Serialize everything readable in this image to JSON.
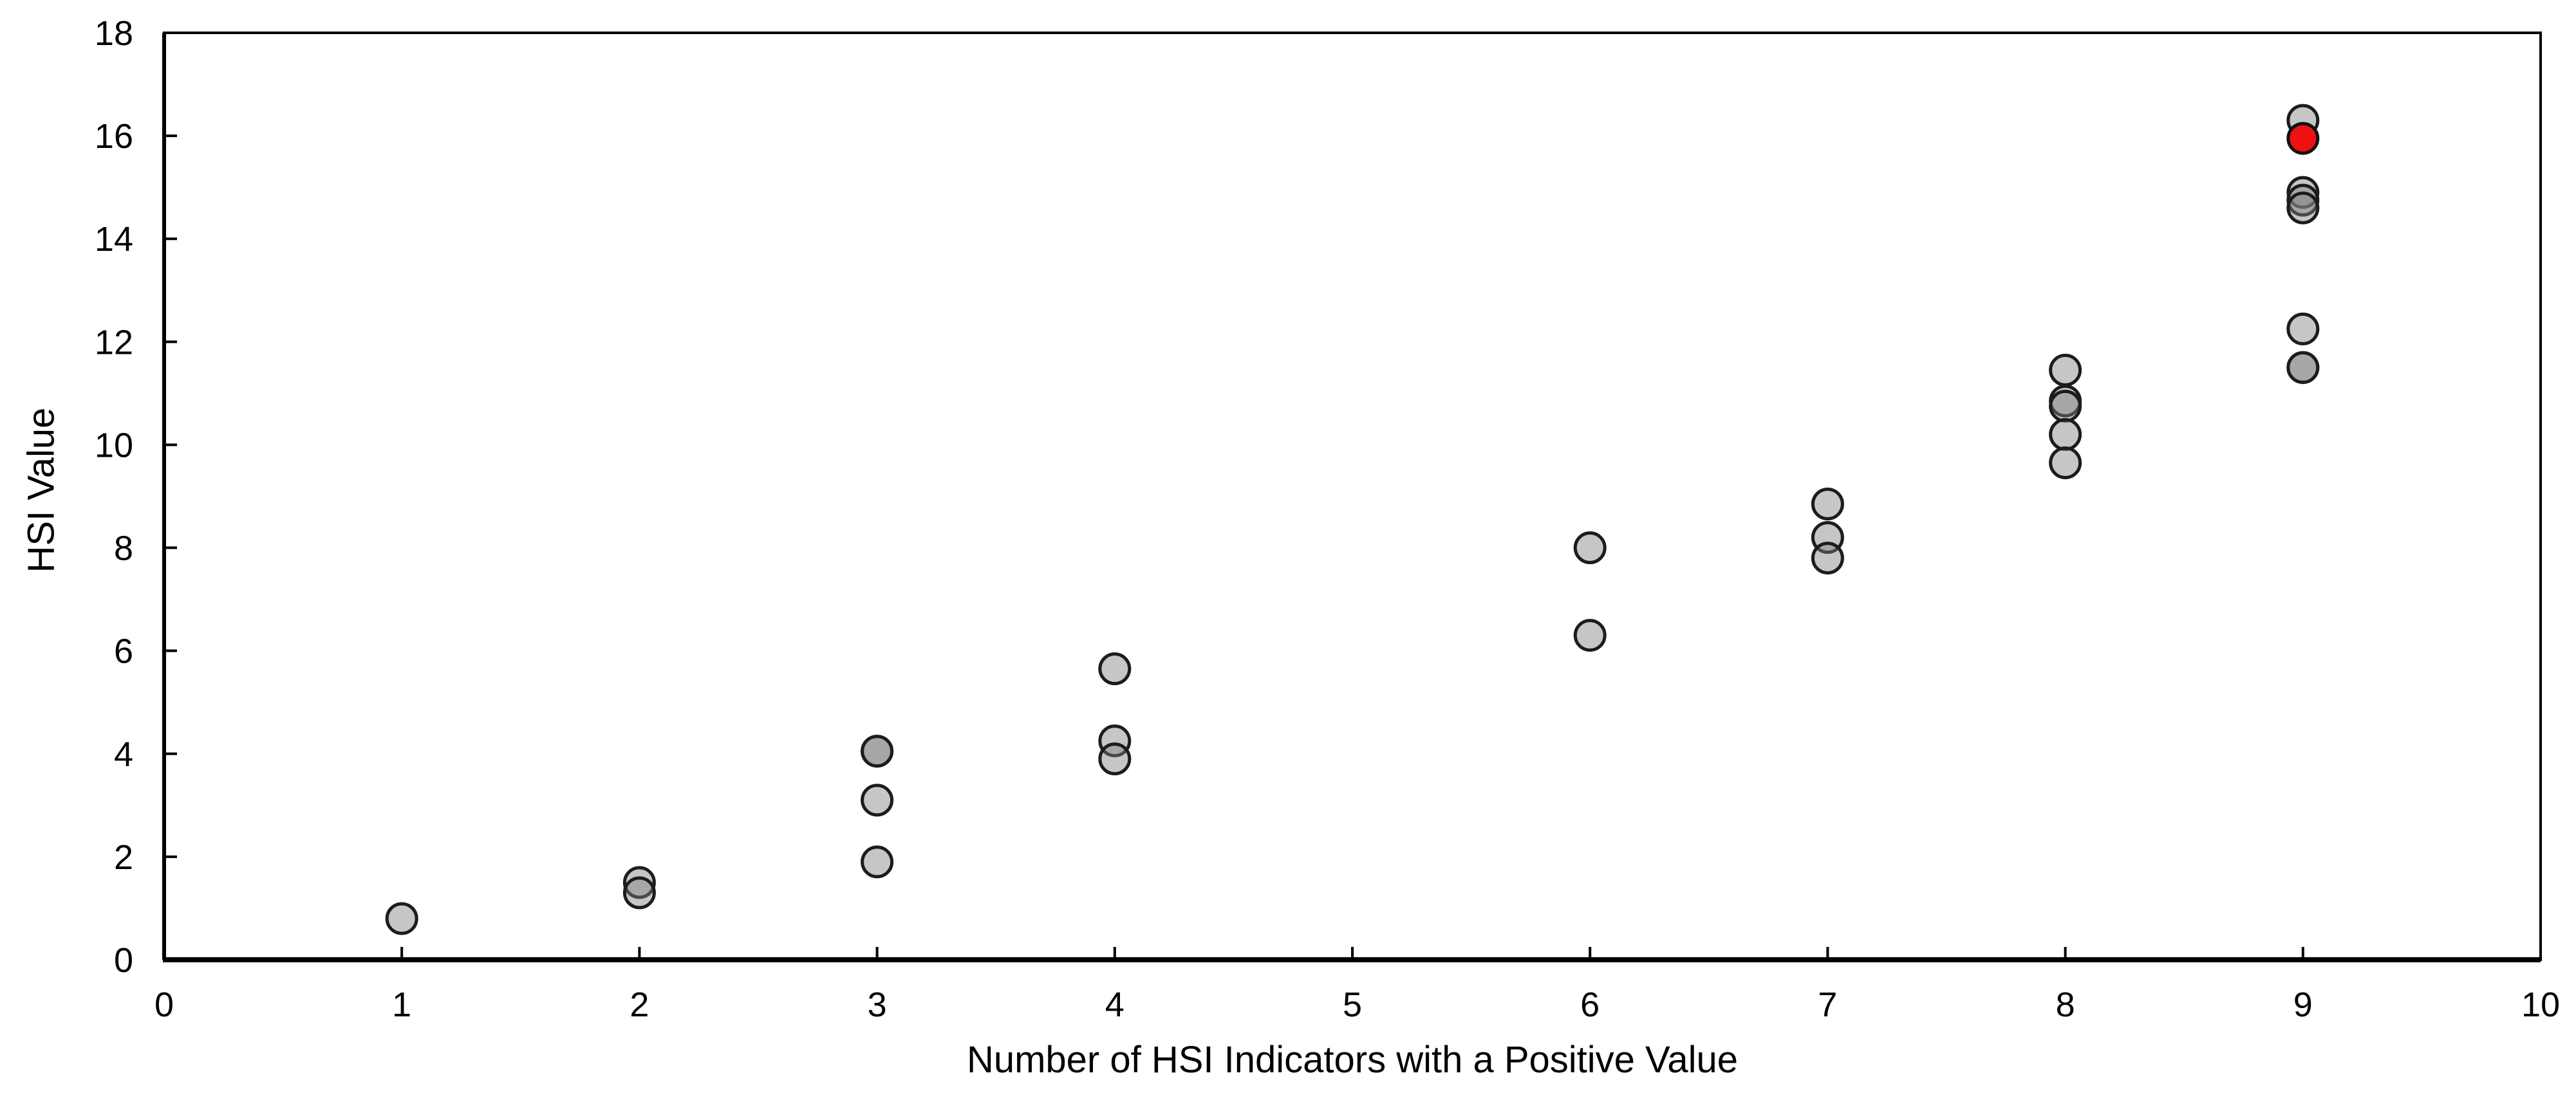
{
  "page": {
    "background_color": "#ffffff"
  },
  "chart_data": {
    "type": "scatter",
    "title": "",
    "xlabel": "Number of HSI Indicators with a Positive Value",
    "ylabel": "HSI Value",
    "xlim": [
      0,
      10
    ],
    "ylim": [
      0,
      18
    ],
    "x_ticks": [
      0,
      1,
      2,
      3,
      4,
      5,
      6,
      7,
      8,
      9,
      10
    ],
    "y_ticks": [
      0,
      2,
      4,
      6,
      8,
      10,
      12,
      14,
      16,
      18
    ],
    "grid": false,
    "legend": false,
    "frame_color": "#000000",
    "marker_diameter_px": 46,
    "series": [
      {
        "id": "gray-points",
        "marker_fill": "rgba(128,128,128,0.45)",
        "marker_fill_apparent": "#c6c6c6",
        "marker_overlap_apparent": "#a0a0a0",
        "marker_stroke": "#1c1c1c",
        "points": [
          [
            1,
            0.8
          ],
          [
            2,
            1.5
          ],
          [
            2,
            1.3
          ],
          [
            3,
            4.05
          ],
          [
            3,
            4.05
          ],
          [
            3,
            3.1
          ],
          [
            3,
            1.9
          ],
          [
            4,
            5.65
          ],
          [
            4,
            4.25
          ],
          [
            4,
            3.9
          ],
          [
            6,
            8.0
          ],
          [
            6,
            6.3
          ],
          [
            7,
            8.85
          ],
          [
            7,
            8.2
          ],
          [
            7,
            7.8
          ],
          [
            8,
            11.45
          ],
          [
            8,
            10.85
          ],
          [
            8,
            10.75
          ],
          [
            8,
            10.2
          ],
          [
            8,
            9.65
          ],
          [
            9,
            16.3
          ],
          [
            9,
            14.9
          ],
          [
            9,
            14.75
          ],
          [
            9,
            14.6
          ],
          [
            9,
            12.25
          ],
          [
            9,
            11.5
          ],
          [
            9,
            11.5
          ]
        ]
      },
      {
        "id": "highlighted-point",
        "marker_fill": "#ee1111",
        "marker_stroke": "#111111",
        "points": [
          [
            9,
            15.95
          ]
        ]
      }
    ]
  }
}
